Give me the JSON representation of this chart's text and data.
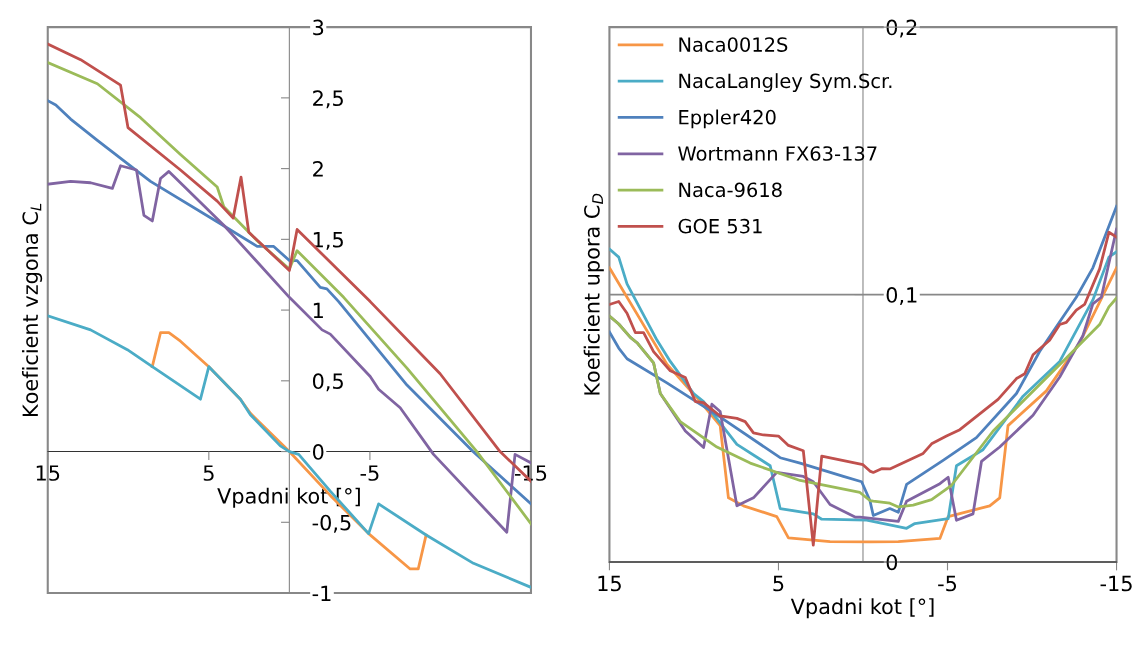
{
  "chart_data": [
    {
      "type": "line",
      "xlabel": "Vpadni kot [°]",
      "ylabel": "Koeficient vzgona C$_{L}$",
      "xlim": [
        15,
        -15
      ],
      "ylim": [
        -1,
        3
      ],
      "xticks": [
        15,
        5,
        -5,
        -15
      ],
      "yticks": [
        {
          "value": -1,
          "label": "-1"
        },
        {
          "value": -0.5,
          "label": "-0,5"
        },
        {
          "value": 0,
          "label": "0"
        },
        {
          "value": 0.5,
          "label": "0,5"
        },
        {
          "value": 1,
          "label": "1"
        },
        {
          "value": 1.5,
          "label": "1,5"
        },
        {
          "value": 2,
          "label": "2"
        },
        {
          "value": 2.5,
          "label": "2,5"
        },
        {
          "value": 3,
          "label": "3"
        }
      ],
      "legend": false,
      "series": [
        {
          "color": "#f79646",
          "x": [
            8.51,
            8.0,
            7.48,
            6.76,
            5.0,
            3.04,
            2.42,
            0,
            -2.54,
            -4.92,
            -7.5,
            -8.0,
            -8.49
          ],
          "values": [
            0.6,
            0.84,
            0.84,
            0.78,
            0.6,
            0.37,
            0.27,
            0,
            -0.31,
            -0.58,
            -0.83,
            -0.83,
            -0.59
          ]
        },
        {
          "color": "#4bacc6",
          "x": [
            15,
            12.34,
            10.06,
            8.51,
            5.52,
            5.0,
            3.04,
            2.42,
            0.56,
            0,
            -0.58,
            -2.54,
            -4.92,
            -5.54,
            -8.49,
            -11.43,
            -15
          ],
          "values": [
            0.96,
            0.86,
            0.72,
            0.6,
            0.37,
            0.6,
            0.37,
            0.26,
            0.04,
            0,
            -0.02,
            -0.28,
            -0.58,
            -0.37,
            -0.59,
            -0.79,
            -0.96
          ]
        },
        {
          "color": "#4f81bd",
          "x": [
            15,
            14.5,
            13.58,
            11.92,
            8.62,
            4.28,
            2.0,
            0.97,
            0,
            -0.48,
            -1.92,
            -2.33,
            -3.06,
            -7.3,
            -11.4,
            -15
          ],
          "values": [
            2.48,
            2.45,
            2.35,
            2.2,
            1.91,
            1.61,
            1.45,
            1.45,
            1.35,
            1.35,
            1.16,
            1.15,
            1.06,
            0.47,
            0,
            -0.37
          ]
        },
        {
          "color": "#8064a2",
          "x": [
            15,
            13.58,
            12.34,
            10.99,
            10.48,
            9.49,
            9.03,
            8.51,
            8.0,
            7.48,
            4.07,
            0,
            -2.03,
            -2.54,
            -5.02,
            -5.54,
            -6.88,
            -8.95,
            -13.5,
            -14.01,
            -15
          ],
          "values": [
            1.89,
            1.91,
            1.9,
            1.86,
            2.02,
            1.99,
            1.67,
            1.63,
            1.93,
            1.98,
            1.6,
            1.09,
            0.86,
            0.83,
            0.53,
            0.44,
            0.31,
            -0.02,
            -0.57,
            -0.02,
            -0.08
          ]
        },
        {
          "color": "#9bbb59",
          "x": [
            15,
            11.92,
            9.24,
            6.76,
            4.48,
            4.07,
            2.0,
            0,
            -0.48,
            -3.37,
            -7.3,
            -11.64,
            -15
          ],
          "values": [
            2.75,
            2.6,
            2.36,
            2.1,
            1.87,
            1.73,
            1.49,
            1.29,
            1.42,
            1.09,
            0.59,
            0,
            -0.51
          ]
        },
        {
          "color": "#c0504d",
          "x": [
            15,
            12.96,
            10.48,
            10.02,
            6.76,
            4.48,
            3.49,
            3.0,
            2.52,
            0,
            -0.48,
            -5.02,
            -9.36,
            -13.08,
            -15
          ],
          "values": [
            2.88,
            2.77,
            2.59,
            2.29,
            1.99,
            1.77,
            1.65,
            1.94,
            1.55,
            1.28,
            1.57,
            1.06,
            0.55,
            0,
            -0.21
          ]
        }
      ]
    },
    {
      "type": "line",
      "xlabel": "Vpadni kot [°]",
      "ylabel": "Koeficient upora C$_{D}$",
      "xlim": [
        15,
        -15
      ],
      "ylim": [
        0,
        0.2
      ],
      "xticks": [
        15,
        5,
        -5,
        -15
      ],
      "yticks": [
        {
          "value": 0,
          "label": "0"
        },
        {
          "value": 0.1,
          "label": "0,1"
        },
        {
          "value": 0.2,
          "label": "0,2"
        }
      ],
      "grid": "y",
      "legend": "top left",
      "series": [
        {
          "name": "Naca0012S",
          "color": "#f79646",
          "x": [
            15,
            11.6,
            9.63,
            8.45,
            7.96,
            7.07,
            5.1,
            4.41,
            1.95,
            -0.41,
            -2.09,
            -4.55,
            -5.04,
            -7.5,
            -8.09,
            -8.58,
            -10.85,
            -12.82,
            -15
          ],
          "values": [
            0.11,
            0.074,
            0.06,
            0.051,
            0.024,
            0.021,
            0.017,
            0.009,
            0.0076,
            0.0075,
            0.0076,
            0.0088,
            0.017,
            0.021,
            0.024,
            0.051,
            0.064,
            0.082,
            0.11
          ]
        },
        {
          "name": "NacaLangley Sym.Scr.",
          "color": "#4bacc6",
          "x": [
            15,
            14.45,
            13.96,
            12.19,
            11.4,
            10.02,
            9.43,
            7.46,
            5.49,
            4.9,
            2.94,
            2.44,
            -0.22,
            -2.58,
            -3.07,
            -5.04,
            -5.53,
            -7.1,
            -9.47,
            -11.64,
            -13.6,
            -14.55,
            -15
          ],
          "values": [
            0.117,
            0.114,
            0.104,
            0.083,
            0.075,
            0.063,
            0.06,
            0.044,
            0.036,
            0.02,
            0.018,
            0.016,
            0.0157,
            0.0126,
            0.0144,
            0.0162,
            0.036,
            0.042,
            0.062,
            0.075,
            0.098,
            0.114,
            0.116
          ]
        },
        {
          "name": "Eppler420",
          "color": "#4f81bd",
          "x": [
            15,
            14.45,
            13.96,
            11.6,
            8.64,
            4.9,
            3.72,
            1.16,
            0.08,
            -0.41,
            -0.61,
            -1.59,
            -2.09,
            -2.58,
            -4.74,
            -6.71,
            -9.08,
            -10.45,
            -12.62,
            -13.6,
            -15
          ],
          "values": [
            0.086,
            0.08,
            0.076,
            0.067,
            0.055,
            0.039,
            0.037,
            0.032,
            0.03,
            0.023,
            0.0174,
            0.02,
            0.0186,
            0.029,
            0.038,
            0.0465,
            0.063,
            0.0787,
            0.099,
            0.11,
            0.133
          ]
        },
        {
          "name": "Wortmann FX63-137",
          "color": "#8064a2",
          "x": [
            15,
            14.45,
            13.76,
            13.37,
            12.39,
            11.99,
            10.51,
            9.43,
            8.94,
            8.45,
            7.46,
            6.48,
            5.1,
            3.53,
            2.94,
            1.95,
            0.47,
            0.18,
            -2.09,
            -2.58,
            -4.55,
            -5.04,
            -5.53,
            -6.51,
            -7.01,
            -8.09,
            -10.06,
            -11.64,
            -13.01,
            -13.6,
            -14.1,
            -15
          ],
          "values": [
            0.092,
            0.089,
            0.084,
            0.082,
            0.0745,
            0.063,
            0.049,
            0.0428,
            0.059,
            0.0563,
            0.021,
            0.024,
            0.0335,
            0.032,
            0.03,
            0.0215,
            0.0168,
            0.0168,
            0.0152,
            0.0227,
            0.0293,
            0.0317,
            0.0156,
            0.018,
            0.0376,
            0.043,
            0.0549,
            0.0692,
            0.0846,
            0.0965,
            0.099,
            0.1245
          ]
        },
        {
          "name": "Naca-9618",
          "color": "#9bbb59",
          "x": [
            15,
            14.45,
            13.76,
            13.37,
            12.39,
            11.99,
            10.81,
            8.64,
            6.67,
            3.72,
            0.18,
            -0.41,
            -0.61,
            -1.59,
            -2.09,
            -2.97,
            -4.06,
            -5.24,
            -7.7,
            -9.67,
            -12.03,
            -14.0,
            -14.55,
            -15
          ],
          "values": [
            0.092,
            0.089,
            0.084,
            0.082,
            0.0745,
            0.063,
            0.0525,
            0.043,
            0.037,
            0.0305,
            0.026,
            0.023,
            0.0228,
            0.022,
            0.0206,
            0.0213,
            0.0233,
            0.0287,
            0.049,
            0.0614,
            0.0763,
            0.0888,
            0.0954,
            0.0987
          ]
        },
        {
          "name": "GOE 531",
          "color": "#c0504d",
          "x": [
            15,
            14.45,
            13.96,
            13.47,
            12.98,
            12.39,
            11.4,
            10.51,
            9.92,
            9.43,
            8.45,
            7.46,
            6.97,
            6.48,
            5.89,
            5.0,
            4.41,
            3.53,
            2.94,
            2.44,
            0,
            -0.41,
            -0.61,
            -1.1,
            -1.59,
            -3.56,
            -4.06,
            -4.94,
            -5.73,
            -7.99,
            -9.08,
            -9.57,
            -10.06,
            -11.04,
            -11.64,
            -12.03,
            -12.62,
            -13.11,
            -14.0,
            -14.55,
            -15
          ],
          "values": [
            0.0963,
            0.0974,
            0.093,
            0.0858,
            0.0858,
            0.0787,
            0.0715,
            0.069,
            0.06,
            0.0596,
            0.0546,
            0.0537,
            0.0525,
            0.0483,
            0.0475,
            0.0471,
            0.0436,
            0.0416,
            0.0063,
            0.0396,
            0.0364,
            0.034,
            0.0335,
            0.0349,
            0.0348,
            0.0406,
            0.0442,
            0.0471,
            0.0495,
            0.0608,
            0.0686,
            0.0704,
            0.0775,
            0.0829,
            0.0888,
            0.0896,
            0.0942,
            0.0963,
            0.1096,
            0.1233,
            0.1215
          ]
        }
      ]
    }
  ]
}
